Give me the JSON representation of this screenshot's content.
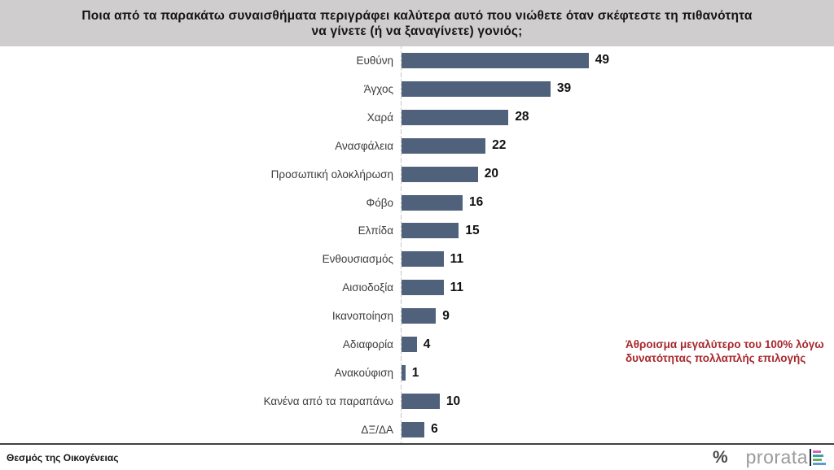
{
  "title_lines": [
    "Ποια από τα παρακάτω συναισθήματα περιγράφει καλύτερα αυτό που νιώθετε όταν σκέφτεστε τη πιθανότητα",
    "να γίνετε (ή να ξαναγίνετε) γονιός;"
  ],
  "chart_data": {
    "type": "bar",
    "orientation": "horizontal",
    "title": "Ποια από τα παρακάτω συναισθήματα περιγράφει καλύτερα αυτό που νιώθετε όταν σκέφτεστε τη πιθανότητα να γίνετε (ή να ξαναγίνετε) γονιός;",
    "categories": [
      "Ευθύνη",
      "Άγχος",
      "Χαρά",
      "Ανασφάλεια",
      "Προσωπική ολοκλήρωση",
      "Φόβο",
      "Ελπίδα",
      "Ενθουσιασμός",
      "Αισιοδοξία",
      "Ικανοποίηση",
      "Αδιαφορία",
      "Ανακούφιση",
      "Κανένα από τα παραπάνω",
      "ΔΞ/ΔΑ"
    ],
    "values": [
      49,
      39,
      28,
      22,
      20,
      16,
      15,
      11,
      11,
      9,
      4,
      1,
      10,
      6
    ],
    "xlim": [
      0,
      52
    ],
    "grid": false,
    "data_labels": true,
    "bar_color": "#50617b",
    "axis_line_color": "#c6c6c6"
  },
  "annotation": {
    "lines": [
      "Άθροισμα μεγαλύτερο του 100% λόγω",
      "δυνατότητας πολλαπλής επιλογής"
    ],
    "color": "#a8282e"
  },
  "footer": {
    "topic": "Θεσμός της Οικογένειας",
    "percent_symbol": "%",
    "brand": "prorata",
    "logo_bar_colors": [
      "#d666ae",
      "#35a49e",
      "#68b151",
      "#5b9bd5"
    ],
    "logo_bar_widths": [
      10,
      13,
      11,
      16
    ]
  }
}
